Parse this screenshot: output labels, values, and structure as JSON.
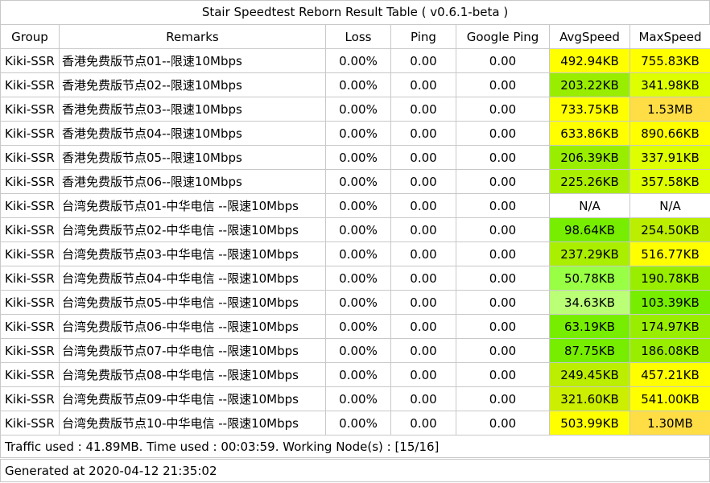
{
  "title": "Stair Speedtest Reborn Result Table ( v0.6.1-beta )",
  "headers": [
    "Group",
    "Remarks",
    "Loss",
    "Ping",
    "Google Ping",
    "AvgSpeed",
    "MaxSpeed"
  ],
  "rows": [
    {
      "group": "Kiki-SSR",
      "remarks": "香港免费版节点01--限速10Mbps",
      "loss": "0.00%",
      "ping": "0.00",
      "gping": "0.00",
      "avg": "492.94KB",
      "avg_color": "#ffff00",
      "max": "755.83KB",
      "max_color": "#ffff00"
    },
    {
      "group": "Kiki-SSR",
      "remarks": "香港免费版节点02--限速10Mbps",
      "loss": "0.00%",
      "ping": "0.00",
      "gping": "0.00",
      "avg": "203.22KB",
      "avg_color": "#99ee00",
      "max": "341.98KB",
      "max_color": "#ddff00"
    },
    {
      "group": "Kiki-SSR",
      "remarks": "香港免费版节点03--限速10Mbps",
      "loss": "0.00%",
      "ping": "0.00",
      "gping": "0.00",
      "avg": "733.75KB",
      "avg_color": "#ffff00",
      "max": "1.53MB",
      "max_color": "#ffdd44"
    },
    {
      "group": "Kiki-SSR",
      "remarks": "香港免费版节点04--限速10Mbps",
      "loss": "0.00%",
      "ping": "0.00",
      "gping": "0.00",
      "avg": "633.86KB",
      "avg_color": "#ffff00",
      "max": "890.66KB",
      "max_color": "#ffff00"
    },
    {
      "group": "Kiki-SSR",
      "remarks": "香港免费版节点05--限速10Mbps",
      "loss": "0.00%",
      "ping": "0.00",
      "gping": "0.00",
      "avg": "206.39KB",
      "avg_color": "#99ee00",
      "max": "337.91KB",
      "max_color": "#ddff00"
    },
    {
      "group": "Kiki-SSR",
      "remarks": "香港免费版节点06--限速10Mbps",
      "loss": "0.00%",
      "ping": "0.00",
      "gping": "0.00",
      "avg": "225.26KB",
      "avg_color": "#aaee00",
      "max": "357.58KB",
      "max_color": "#ddff00"
    },
    {
      "group": "Kiki-SSR",
      "remarks": "台湾免费版节点01-中华电信 --限速10Mbps",
      "loss": "0.00%",
      "ping": "0.00",
      "gping": "0.00",
      "avg": "N/A",
      "avg_color": "#ffffff",
      "max": "N/A",
      "max_color": "#ffffff"
    },
    {
      "group": "Kiki-SSR",
      "remarks": "台湾免费版节点02-中华电信 --限速10Mbps",
      "loss": "0.00%",
      "ping": "0.00",
      "gping": "0.00",
      "avg": "98.64KB",
      "avg_color": "#77ee00",
      "max": "254.50KB",
      "max_color": "#bbee00"
    },
    {
      "group": "Kiki-SSR",
      "remarks": "台湾免费版节点03-中华电信 --限速10Mbps",
      "loss": "0.00%",
      "ping": "0.00",
      "gping": "0.00",
      "avg": "237.29KB",
      "avg_color": "#aaee00",
      "max": "516.77KB",
      "max_color": "#ffff00"
    },
    {
      "group": "Kiki-SSR",
      "remarks": "台湾免费版节点04-中华电信 --限速10Mbps",
      "loss": "0.00%",
      "ping": "0.00",
      "gping": "0.00",
      "avg": "50.78KB",
      "avg_color": "#99ff44",
      "max": "190.78KB",
      "max_color": "#99ee00"
    },
    {
      "group": "Kiki-SSR",
      "remarks": "台湾免费版节点05-中华电信 --限速10Mbps",
      "loss": "0.00%",
      "ping": "0.00",
      "gping": "0.00",
      "avg": "34.63KB",
      "avg_color": "#bbff77",
      "max": "103.39KB",
      "max_color": "#77ee00"
    },
    {
      "group": "Kiki-SSR",
      "remarks": "台湾免费版节点06-中华电信 --限速10Mbps",
      "loss": "0.00%",
      "ping": "0.00",
      "gping": "0.00",
      "avg": "63.19KB",
      "avg_color": "#77ee00",
      "max": "174.97KB",
      "max_color": "#99ee00"
    },
    {
      "group": "Kiki-SSR",
      "remarks": "台湾免费版节点07-中华电信 --限速10Mbps",
      "loss": "0.00%",
      "ping": "0.00",
      "gping": "0.00",
      "avg": "87.75KB",
      "avg_color": "#77ee00",
      "max": "186.08KB",
      "max_color": "#99ee00"
    },
    {
      "group": "Kiki-SSR",
      "remarks": "台湾免费版节点08-中华电信 --限速10Mbps",
      "loss": "0.00%",
      "ping": "0.00",
      "gping": "0.00",
      "avg": "249.45KB",
      "avg_color": "#bbee00",
      "max": "457.21KB",
      "max_color": "#ffff00"
    },
    {
      "group": "Kiki-SSR",
      "remarks": "台湾免费版节点09-中华电信 --限速10Mbps",
      "loss": "0.00%",
      "ping": "0.00",
      "gping": "0.00",
      "avg": "321.60KB",
      "avg_color": "#ccee00",
      "max": "541.00KB",
      "max_color": "#ffff00"
    },
    {
      "group": "Kiki-SSR",
      "remarks": "台湾免费版节点10-中华电信 --限速10Mbps",
      "loss": "0.00%",
      "ping": "0.00",
      "gping": "0.00",
      "avg": "503.99KB",
      "avg_color": "#ffff00",
      "max": "1.30MB",
      "max_color": "#ffdd44"
    }
  ],
  "footer": {
    "traffic": "Traffic used : 41.89MB. Time used : 00:03:59. Working Node(s) : [15/16]",
    "generated": "Generated at 2020-04-12 21:35:02"
  }
}
